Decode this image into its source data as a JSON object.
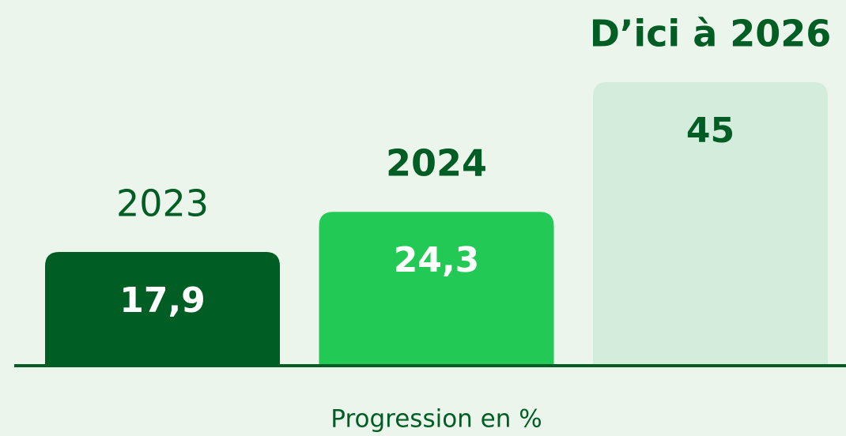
{
  "chart_data": {
    "type": "bar",
    "categories": [
      "2023",
      "2024",
      "D’ici à 2026"
    ],
    "values": [
      17.9,
      24.3,
      45
    ],
    "value_labels": [
      "17,9",
      "24,3",
      "45"
    ],
    "colors": [
      "#005e25",
      "#22c954",
      "#d4ecdb"
    ],
    "xlabel": "Progression en %"
  }
}
